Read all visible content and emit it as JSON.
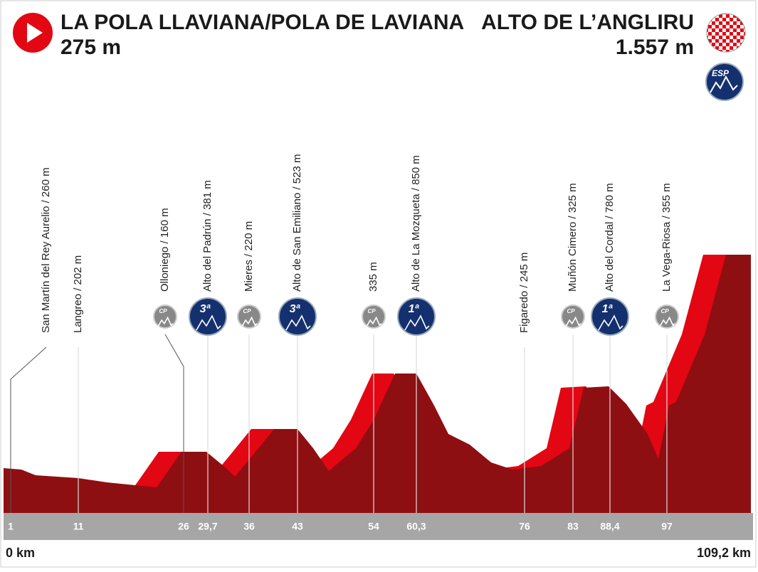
{
  "header": {
    "start_name": "LA POLA LLAVIANA/POLA DE LAVIANA",
    "start_altitude": "275 m",
    "finish_name": "ALTO DE L’ANGLIRU",
    "finish_altitude": "1.557 m",
    "finish_badge": "ESP"
  },
  "waypoints": [
    {
      "label": "San Martín del Rey Aurelio / 260 m",
      "km": "1"
    },
    {
      "label": "Langreo / 202 m",
      "km": "11"
    },
    {
      "label": "Olloniego / 160 m",
      "km": "26",
      "badge": "CP"
    },
    {
      "label": "Alto del Padrún / 381 m",
      "km": "29,7",
      "badge": "3ª"
    },
    {
      "label": "Mieres / 220 m",
      "km": "36",
      "badge": "CP"
    },
    {
      "label": "Alto de San Emiliano / 523 m",
      "km": "43",
      "badge": "3ª"
    },
    {
      "label": "335 m",
      "km": "54",
      "badge": "CP"
    },
    {
      "label": "Alto de La Mozqueta / 850 m",
      "km": "60,3",
      "badge": "1ª"
    },
    {
      "label": "Figaredo / 245 m",
      "km": "76"
    },
    {
      "label": "Muñón Cimero / 325 m",
      "km": "83",
      "badge": "CP"
    },
    {
      "label": "Alto del Cordal / 780 m",
      "km": "88,4",
      "badge": "1ª"
    },
    {
      "label": "La Vega-Riosa / 355 m",
      "km": "97",
      "badge": "CP"
    }
  ],
  "footer": {
    "start_km": "0 km",
    "finish_km": "109,2 km"
  }
}
